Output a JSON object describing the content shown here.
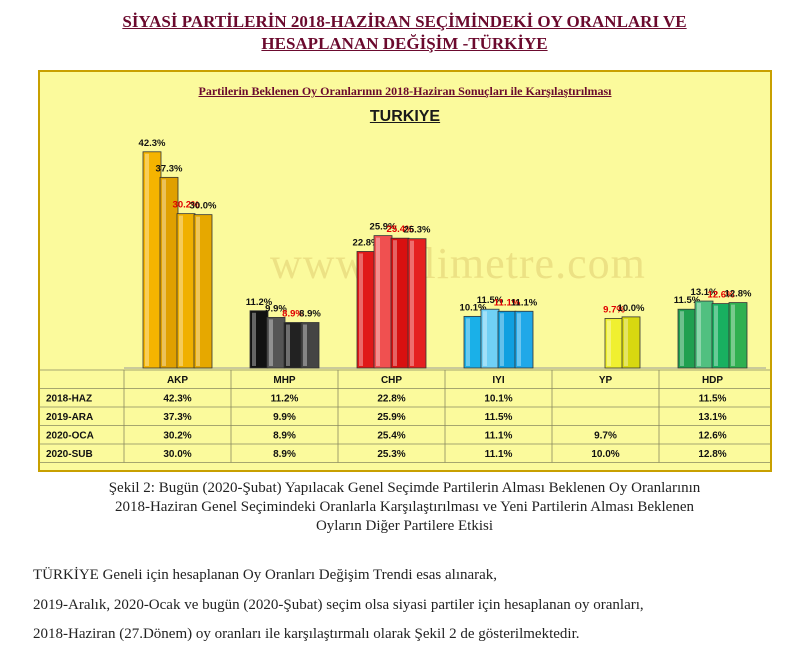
{
  "title_line1": "SİYASİ PARTİLERİN 2018-HAZİRAN SEÇİMİNDEKİ OY ORANLARI VE",
  "title_line2": "HESAPLANAN DEĞİŞİM -TÜRKİYE",
  "watermark": "www.polimetre.com",
  "chart_data": {
    "type": "bar",
    "title": "Partilerin Beklenen Oy Oranlarının 2018-Haziran Sonuçları ile Karşılaştırılması",
    "subtitle": "TURKIYE",
    "categories": [
      "AKP",
      "MHP",
      "CHP",
      "IYI",
      "YP",
      "HDP"
    ],
    "series": [
      {
        "name": "2018-HAZ",
        "values": [
          42.3,
          11.2,
          22.8,
          10.1,
          null,
          11.5
        ],
        "labels": [
          "42.3%",
          "11.2%",
          "22.8%",
          "10.1%",
          "",
          "11.5%"
        ],
        "table": [
          "42.3%",
          "11.2%",
          "22.8%",
          "10.1%",
          "",
          "11.5%"
        ]
      },
      {
        "name": "2019-ARA",
        "values": [
          37.3,
          9.9,
          25.9,
          11.5,
          null,
          13.1
        ],
        "labels": [
          "37.3%",
          "9.9%",
          "25.9%",
          "11.5%",
          "",
          "13.1%"
        ],
        "table": [
          "37.3%",
          "9.9%",
          "25.9%",
          "11.5%",
          "",
          "13.1%"
        ]
      },
      {
        "name": "2020-OCA",
        "values": [
          30.2,
          8.9,
          25.4,
          11.1,
          9.7,
          12.6
        ],
        "labels": [
          "30.2%",
          "8.9%",
          "25.4%",
          "11.1%",
          "9.7%",
          "12.6%"
        ],
        "table": [
          "30.2%",
          "8.9%",
          "25.4%",
          "11.1%",
          "9.7%",
          "12.6%"
        ]
      },
      {
        "name": "2020-SUB",
        "values": [
          30.0,
          8.9,
          25.3,
          11.1,
          10.0,
          12.8
        ],
        "labels": [
          "30.0%",
          "8.9%",
          "25.3%",
          "11.1%",
          "10.0%",
          "12.8%"
        ],
        "table": [
          "30.0%",
          "8.9%",
          "25.3%",
          "11.1%",
          "10.0%",
          "12.8%"
        ]
      }
    ],
    "ylim": [
      0,
      45
    ],
    "grid": false,
    "legend": "data table below chart",
    "highlight_series": "2020-OCA",
    "highlight_color": "#e00000",
    "party_colors": {
      "AKP": [
        "#f5b400",
        "#e0a000",
        "#f0b000",
        "#e6a800"
      ],
      "MHP": [
        "#111111",
        "#555555",
        "#222222",
        "#444444"
      ],
      "CHP": [
        "#e01818",
        "#f05050",
        "#d81010",
        "#e52020"
      ],
      "IYI": [
        "#1ab0e8",
        "#70d0f5",
        "#10a0e0",
        "#20a8e8"
      ],
      "YP": [
        "#e8e820",
        "#e8e820",
        "#f0f030",
        "#d8d810"
      ],
      "HDP": [
        "#20a050",
        "#50c080",
        "#18b060",
        "#30b050"
      ]
    }
  },
  "caption": [
    "Şekil 2: Bugün (2020-Şubat) Yapılacak Genel Seçimde Partilerin Alması Beklenen Oy Oranlarının",
    "2018-Haziran Genel Seçimindeki Oranlarla Karşılaştırılması ve Yeni Partilerin Alması Beklenen",
    "Oyların Diğer Partilere Etkisi"
  ],
  "body": [
    "TÜRKİYE Geneli için hesaplanan Oy Oranları Değişim Trendi esas alınarak,",
    "2019-Aralık, 2020-Ocak ve bugün (2020-Şubat) seçim olsa siyasi partiler için hesaplanan oy oranları,",
    "2018-Haziran (27.Dönem) oy oranları ile karşılaştırmalı olarak Şekil 2 de gösterilmektedir."
  ]
}
